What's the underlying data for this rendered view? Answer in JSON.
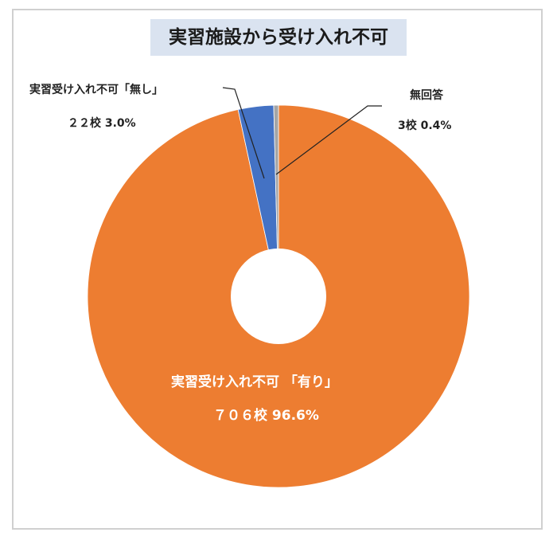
{
  "title": "実習施設から受け入れ不可",
  "labels": {
    "nashi_name": "実習受け入れ不可「無し」",
    "nashi_value": "２２校 3.0%",
    "mukaitou_name": "無回答",
    "mukaitou_value": "3校 0.4%",
    "ari_name": "実習受け入れ不可 「有り」",
    "ari_value": "７０６校 96.6%"
  },
  "chart_data": {
    "type": "pie",
    "variant": "donut",
    "title": "実習施設から受け入れ不可",
    "categories": [
      "実習受け入れ不可「有り」",
      "実習受け入れ不可「無し」",
      "無回答"
    ],
    "counts": [
      706,
      22,
      3
    ],
    "values": [
      96.6,
      3.0,
      0.4
    ],
    "unit": "%",
    "colors": [
      "#ed7d31",
      "#4472c4",
      "#a5a5a5"
    ],
    "start_angle_deg": 0,
    "direction": "clockwise",
    "legend": "none (data labels with leader lines)"
  }
}
